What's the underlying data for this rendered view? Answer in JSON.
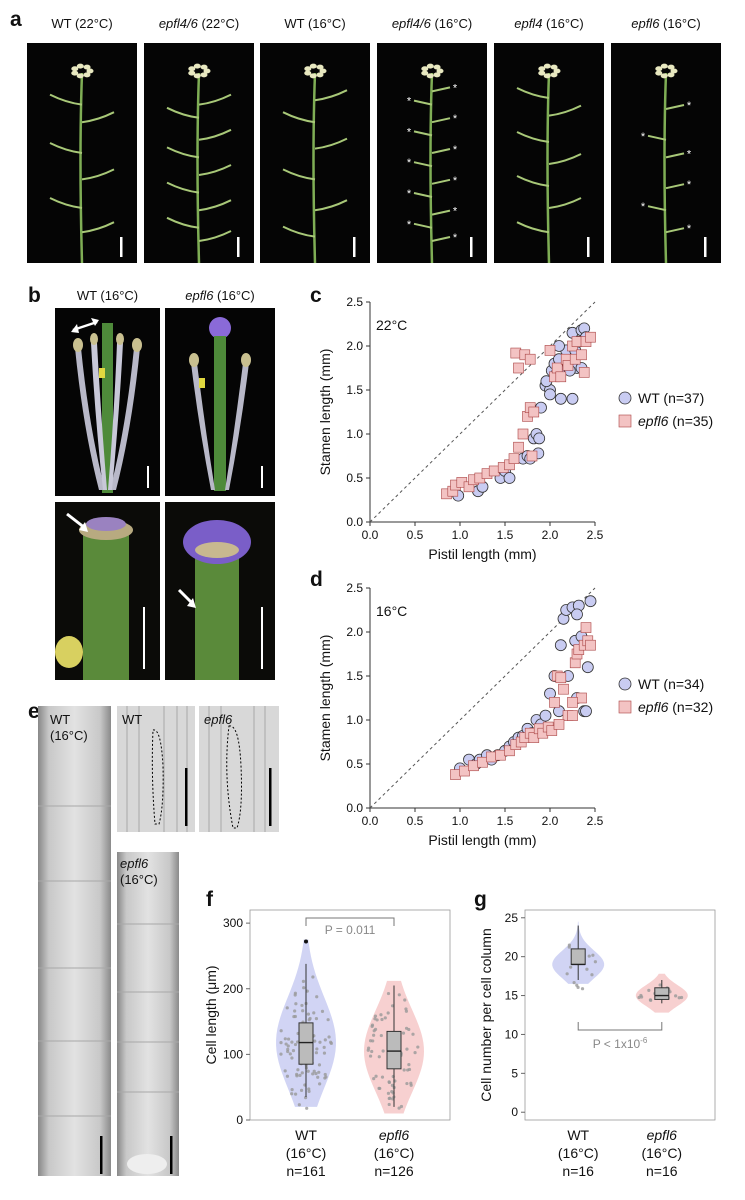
{
  "panel_a": {
    "letter": "a",
    "images": [
      {
        "label": "WT (22°C)"
      },
      {
        "label": "epfl4/6 (22°C)"
      },
      {
        "label": "WT (16°C)"
      },
      {
        "label": "epfl4/6 (16°C)"
      },
      {
        "label": "epfl4 (16°C)"
      },
      {
        "label": "epfl6 (16°C)"
      }
    ]
  },
  "panel_b": {
    "letter": "b",
    "col1": "WT (16°C)",
    "col2": "epfl6 (16°C)"
  },
  "panel_c": {
    "letter": "c",
    "temp": "22°C"
  },
  "panel_d": {
    "letter": "d",
    "temp": "16°C"
  },
  "panel_e": {
    "letter": "e",
    "wt_label_1": "WT",
    "wt_label_2": "(16°C)",
    "inset_wt": "WT",
    "inset_epfl6": "epfl6",
    "epfl6_label_1": "epfl6",
    "epfl6_label_2": "(16°C)"
  },
  "panel_f": {
    "letter": "f"
  },
  "panel_g": {
    "letter": "g"
  },
  "chart_data": [
    {
      "panel": "c",
      "type": "scatter",
      "xlabel": "Pistil length (mm)",
      "ylabel": "Stamen length (mm)",
      "xlim": [
        0,
        2.5
      ],
      "ylim": [
        0,
        2.5
      ],
      "xticks": [
        "0.0",
        "0.5",
        "1.0",
        "1.5",
        "2.0",
        "2.5"
      ],
      "yticks": [
        "0.0",
        "0.5",
        "1.0",
        "1.5",
        "2.0",
        "2.5"
      ],
      "annotation": "22°C",
      "reference_line": "y = x (dashed)",
      "legend_position": "right",
      "series": [
        {
          "name": "WT (n=37)",
          "marker": "circle",
          "color": "#c9ccf2",
          "points": [
            [
              0.98,
              0.3
            ],
            [
              1.2,
              0.35
            ],
            [
              1.25,
              0.4
            ],
            [
              1.45,
              0.5
            ],
            [
              1.5,
              0.58
            ],
            [
              1.55,
              0.5
            ],
            [
              1.7,
              0.72
            ],
            [
              1.75,
              0.75
            ],
            [
              1.78,
              0.72
            ],
            [
              1.82,
              0.95
            ],
            [
              1.85,
              1.0
            ],
            [
              1.87,
              0.78
            ],
            [
              1.88,
              0.95
            ],
            [
              1.9,
              1.3
            ],
            [
              1.95,
              1.55
            ],
            [
              2.0,
              1.5
            ],
            [
              2.0,
              1.45
            ],
            [
              2.02,
              1.72
            ],
            [
              2.05,
              1.8
            ],
            [
              2.08,
              1.7
            ],
            [
              2.1,
              1.85
            ],
            [
              2.12,
              1.4
            ],
            [
              2.15,
              1.75
            ],
            [
              2.18,
              1.95
            ],
            [
              2.2,
              1.8
            ],
            [
              2.25,
              1.4
            ],
            [
              2.25,
              2.15
            ],
            [
              2.28,
              1.95
            ],
            [
              2.3,
              1.75
            ],
            [
              2.32,
              2.05
            ],
            [
              2.35,
              1.75
            ],
            [
              2.35,
              2.18
            ],
            [
              2.38,
              2.2
            ],
            [
              2.4,
              2.1
            ],
            [
              2.1,
              2.0
            ],
            [
              2.22,
              1.72
            ],
            [
              1.96,
              1.6
            ]
          ]
        },
        {
          "name": "epfl6 (n=35)",
          "marker": "square",
          "color": "#f3c3c3",
          "points": [
            [
              0.85,
              0.32
            ],
            [
              0.92,
              0.35
            ],
            [
              0.95,
              0.42
            ],
            [
              1.02,
              0.45
            ],
            [
              1.1,
              0.4
            ],
            [
              1.15,
              0.48
            ],
            [
              1.22,
              0.5
            ],
            [
              1.3,
              0.55
            ],
            [
              1.38,
              0.58
            ],
            [
              1.48,
              0.62
            ],
            [
              1.55,
              0.65
            ],
            [
              1.6,
              0.72
            ],
            [
              1.65,
              0.85
            ],
            [
              1.7,
              1.0
            ],
            [
              1.75,
              1.2
            ],
            [
              1.78,
              1.3
            ],
            [
              1.8,
              0.75
            ],
            [
              1.82,
              1.25
            ],
            [
              1.62,
              1.92
            ],
            [
              1.65,
              1.75
            ],
            [
              1.72,
              1.9
            ],
            [
              1.78,
              1.85
            ],
            [
              2.0,
              1.95
            ],
            [
              2.05,
              1.65
            ],
            [
              2.08,
              1.75
            ],
            [
              2.12,
              1.65
            ],
            [
              2.18,
              1.85
            ],
            [
              2.2,
              1.78
            ],
            [
              2.25,
              2.0
            ],
            [
              2.28,
              1.85
            ],
            [
              2.3,
              2.05
            ],
            [
              2.35,
              1.9
            ],
            [
              2.4,
              2.05
            ],
            [
              2.45,
              2.1
            ],
            [
              2.38,
              1.7
            ]
          ]
        }
      ]
    },
    {
      "panel": "d",
      "type": "scatter",
      "xlabel": "Pistil length (mm)",
      "ylabel": "Stamen length (mm)",
      "xlim": [
        0,
        2.5
      ],
      "ylim": [
        0,
        2.5
      ],
      "xticks": [
        "0.0",
        "0.5",
        "1.0",
        "1.5",
        "2.0",
        "2.5"
      ],
      "yticks": [
        "0.0",
        "0.5",
        "1.0",
        "1.5",
        "2.0",
        "2.5"
      ],
      "annotation": "16°C",
      "reference_line": "y = x (dashed)",
      "legend_position": "right",
      "series": [
        {
          "name": "WT (n=34)",
          "marker": "circle",
          "color": "#c9ccf2",
          "points": [
            [
              1.0,
              0.45
            ],
            [
              1.1,
              0.55
            ],
            [
              1.18,
              0.5
            ],
            [
              1.22,
              0.55
            ],
            [
              1.3,
              0.6
            ],
            [
              1.35,
              0.55
            ],
            [
              1.42,
              0.6
            ],
            [
              1.5,
              0.65
            ],
            [
              1.55,
              0.7
            ],
            [
              1.6,
              0.75
            ],
            [
              1.65,
              0.8
            ],
            [
              1.7,
              0.82
            ],
            [
              1.75,
              0.9
            ],
            [
              1.8,
              0.85
            ],
            [
              1.85,
              1.0
            ],
            [
              1.9,
              0.95
            ],
            [
              1.95,
              1.05
            ],
            [
              2.0,
              1.3
            ],
            [
              2.05,
              1.5
            ],
            [
              2.1,
              1.1
            ],
            [
              2.12,
              1.85
            ],
            [
              2.15,
              2.15
            ],
            [
              2.18,
              2.25
            ],
            [
              2.2,
              1.5
            ],
            [
              2.25,
              2.28
            ],
            [
              2.28,
              1.9
            ],
            [
              2.3,
              1.25
            ],
            [
              2.32,
              2.3
            ],
            [
              2.35,
              1.95
            ],
            [
              2.38,
              1.1
            ],
            [
              2.4,
              1.1
            ],
            [
              2.42,
              1.6
            ],
            [
              2.45,
              2.35
            ],
            [
              2.3,
              2.2
            ]
          ]
        },
        {
          "name": "epfl6 (n=32)",
          "marker": "square",
          "color": "#f3c3c3",
          "points": [
            [
              0.95,
              0.38
            ],
            [
              1.05,
              0.42
            ],
            [
              1.15,
              0.48
            ],
            [
              1.25,
              0.52
            ],
            [
              1.35,
              0.58
            ],
            [
              1.45,
              0.6
            ],
            [
              1.55,
              0.65
            ],
            [
              1.62,
              0.72
            ],
            [
              1.68,
              0.75
            ],
            [
              1.72,
              0.8
            ],
            [
              1.78,
              0.85
            ],
            [
              1.82,
              0.8
            ],
            [
              1.88,
              0.9
            ],
            [
              1.92,
              0.85
            ],
            [
              1.98,
              0.92
            ],
            [
              2.02,
              0.88
            ],
            [
              2.05,
              1.2
            ],
            [
              2.08,
              1.5
            ],
            [
              2.12,
              1.48
            ],
            [
              2.15,
              1.35
            ],
            [
              2.2,
              1.05
            ],
            [
              2.25,
              1.05
            ],
            [
              2.28,
              1.65
            ],
            [
              2.3,
              1.75
            ],
            [
              2.32,
              1.8
            ],
            [
              2.35,
              1.25
            ],
            [
              2.38,
              1.85
            ],
            [
              2.4,
              2.05
            ],
            [
              2.42,
              1.9
            ],
            [
              2.45,
              1.85
            ],
            [
              2.25,
              1.2
            ],
            [
              2.1,
              0.95
            ]
          ]
        }
      ]
    },
    {
      "panel": "f",
      "type": "violin",
      "ylabel": "Cell length (μm)",
      "ylim": [
        0,
        320
      ],
      "yticks": [
        "0",
        "100",
        "200",
        "300"
      ],
      "categories": [
        {
          "name": "WT",
          "lines": [
            "WT",
            "(16°C)",
            "n=161"
          ],
          "color": "#c9ccf2",
          "box": {
            "min": 35,
            "q1": 85,
            "median": 118,
            "q3": 148,
            "max": 238
          },
          "outliers": [
            272
          ]
        },
        {
          "name": "epfl6",
          "lines": [
            "epfl6",
            "(16°C)",
            "n=126"
          ],
          "color": "#f6c8c8",
          "box": {
            "min": 20,
            "q1": 78,
            "median": 105,
            "q3": 135,
            "max": 205
          },
          "outliers": []
        }
      ],
      "annotation": "P = 0.011"
    },
    {
      "panel": "g",
      "type": "violin",
      "ylabel": "Cell number per cell column",
      "ylim": [
        -1,
        26
      ],
      "yticks": [
        "0",
        "5",
        "10",
        "15",
        "20",
        "25"
      ],
      "categories": [
        {
          "name": "WT",
          "lines": [
            "WT",
            "(16°C)",
            "n=16"
          ],
          "color": "#c9ccf2",
          "box": {
            "min": 17,
            "q1": 19,
            "median": 19,
            "q3": 21,
            "max": 24
          },
          "outliers": []
        },
        {
          "name": "epfl6",
          "lines": [
            "epfl6",
            "(16°C)",
            "n=16"
          ],
          "color": "#f6c8c8",
          "box": {
            "min": 14,
            "q1": 14.5,
            "median": 15,
            "q3": 16,
            "max": 17
          },
          "outliers": []
        }
      ],
      "annotation": "P < 1x10",
      "annotation_exp": "-6"
    }
  ]
}
